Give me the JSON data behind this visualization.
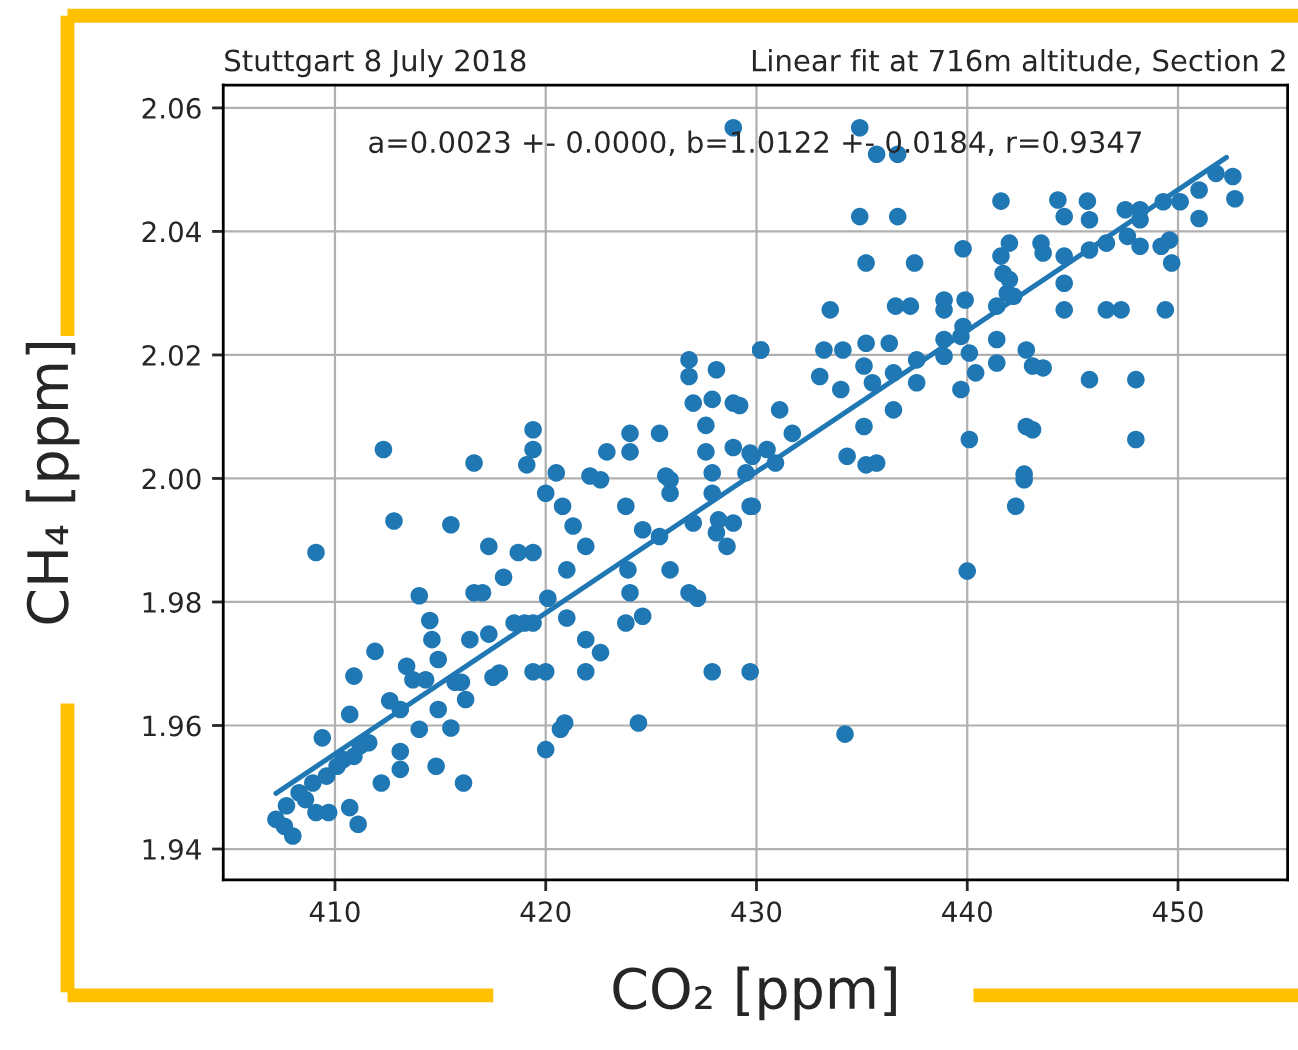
{
  "chart_data": {
    "type": "scatter",
    "title": "Stuttgart 8 July 2018",
    "subtitle": "Linear fit at 716m altitude, Section 2",
    "xlabel": "CO₂ [ppm]",
    "ylabel": "CH₄ [ppm]",
    "annotations": [
      "a=0.0023 +- 0.0000, b=1.0122 +- 0.0184, r=0.9347"
    ],
    "xlim": [
      404.7,
      455.2
    ],
    "ylim": [
      1.935,
      2.0637
    ],
    "xticks": [
      410,
      420,
      430,
      440,
      450
    ],
    "yticks": [
      {
        "value": 1.94,
        "label": "1.94"
      },
      {
        "value": 1.96,
        "label": "1.96"
      },
      {
        "value": 1.98,
        "label": "1.98"
      },
      {
        "value": 2.0,
        "label": "2.00"
      },
      {
        "value": 2.02,
        "label": "2.02"
      },
      {
        "value": 2.04,
        "label": "2.04"
      },
      {
        "value": 2.06,
        "label": "2.06"
      }
    ],
    "grid": true,
    "series": [
      {
        "marker": "circle",
        "color": "#1f77b4",
        "x": [
          409.1,
          412.8,
          415.5,
          417.3,
          418.7,
          419.4,
          418.0,
          414.0,
          416.6,
          417.0,
          414.5,
          411.9,
          410.9,
          409.4,
          410.7,
          412.2,
          411.1,
          410.7,
          414.8,
          416.1,
          415.5,
          420.0,
          420.7,
          420.9,
          424.4,
          427.9,
          429.7,
          419.4,
          420.0,
          421.9,
          422.6,
          421.9,
          423.8,
          424.6,
          424.0,
          423.9,
          425.9,
          426.8,
          427.2,
          421.0,
          421.0,
          420.1,
          419.0,
          418.5,
          419.4,
          417.8,
          417.5,
          416.4,
          417.3,
          414.6,
          414.9,
          413.4,
          413.7,
          414.3,
          415.7,
          416.2,
          416.0,
          414.9,
          413.1,
          412.6,
          413.1,
          413.1,
          414.0,
          411.6,
          407.6,
          408.0,
          407.2,
          407.7,
          408.3,
          408.95,
          409.6,
          410.1,
          410.4,
          410.9,
          409.7,
          409.1,
          408.6,
          411.2,
          434.9,
          435.7,
          436.7,
          434.9,
          436.7,
          441.6,
          444.3,
          444.6,
          445.7,
          445.8,
          447.5,
          448.2,
          448.2,
          449.3,
          450.1,
          451.0,
          451.0,
          451.8,
          452.6,
          452.7,
          435.2,
          437.5,
          439.8,
          441.6,
          442.0,
          441.7,
          442.0,
          441.9,
          442.2,
          441.4,
          443.5,
          443.6,
          444.6,
          444.6,
          444.6,
          445.8,
          446.6,
          447.6,
          448.2,
          449.2,
          449.6,
          449.7,
          446.6,
          447.3,
          449.4,
          439.9,
          438.9,
          438.9,
          437.3,
          436.6,
          433.5,
          438.9,
          439.7,
          439.8,
          440.1,
          438.9,
          437.6,
          436.3,
          435.2,
          434.1,
          433.2,
          433.0,
          434.0,
          435.1,
          435.5,
          436.5,
          437.6,
          439.7,
          440.4,
          441.4,
          441.4,
          442.8,
          443.1,
          443.6,
          445.8,
          448.0,
          430.2,
          431.1,
          431.7,
          436.5,
          435.1,
          440.1,
          442.8,
          443.1,
          448.0,
          434.3,
          435.2,
          435.7,
          442.7,
          440.0,
          442.3,
          442.7,
          434.2,
          429.7,
          428.2,
          428.9,
          412.3,
          416.6,
          419.1,
          419.4,
          419.4,
          420.5,
          422.1,
          422.9,
          424.0,
          424.0,
          425.4,
          425.7,
          426.8,
          426.8,
          428.1,
          427.0,
          427.9,
          428.9,
          427.6,
          427.6,
          428.9,
          427.9,
          430.2,
          429.8,
          420.0,
          420.8,
          421.3,
          421.9,
          422.6,
          423.8,
          424.6,
          425.4,
          425.9,
          425.9,
          427.0,
          427.9,
          428.1,
          428.6,
          428.9,
          429.8,
          429.2,
          429.7,
          430.5,
          430.9,
          429.5
        ],
        "values": [
          1.988,
          1.9931,
          1.9925,
          1.989,
          1.988,
          1.988,
          1.984,
          1.981,
          1.9815,
          1.9815,
          1.977,
          1.972,
          1.968,
          1.958,
          1.9618,
          1.9507,
          1.944,
          1.9467,
          1.9534,
          1.9507,
          1.9596,
          1.9561,
          1.9594,
          1.9604,
          1.9604,
          1.9687,
          1.9687,
          1.9687,
          1.9687,
          1.9687,
          1.9718,
          1.9739,
          1.9766,
          1.9777,
          1.9815,
          1.9852,
          1.9852,
          1.9815,
          1.9806,
          1.9774,
          1.9852,
          1.9806,
          1.9766,
          1.9766,
          1.9766,
          1.9685,
          1.9678,
          1.9739,
          1.9748,
          1.9739,
          1.9707,
          1.9696,
          1.9674,
          1.9674,
          1.967,
          1.9642,
          1.967,
          1.9626,
          1.9626,
          1.964,
          1.9558,
          1.9529,
          1.9594,
          1.9572,
          1.9437,
          1.9421,
          1.9448,
          1.947,
          1.9491,
          1.9507,
          1.9518,
          1.9534,
          1.9545,
          1.955,
          1.9459,
          1.9459,
          1.948,
          1.9567,
          2.0568,
          2.0525,
          2.0525,
          2.0424,
          2.0424,
          2.0449,
          2.0451,
          2.0424,
          2.0449,
          2.0419,
          2.0435,
          2.0435,
          2.0419,
          2.0448,
          2.0448,
          2.0467,
          2.0421,
          2.0494,
          2.0489,
          2.0453,
          2.0349,
          2.0349,
          2.0372,
          2.036,
          2.0381,
          2.0332,
          2.0322,
          2.03,
          2.0295,
          2.0279,
          2.0381,
          2.0365,
          2.036,
          2.0316,
          2.0273,
          2.037,
          2.0381,
          2.0392,
          2.0376,
          2.0376,
          2.0386,
          2.0349,
          2.0273,
          2.0273,
          2.0273,
          2.0289,
          2.0289,
          2.0273,
          2.0279,
          2.0279,
          2.0273,
          2.0225,
          2.023,
          2.0246,
          2.0203,
          2.0198,
          2.0192,
          2.0219,
          2.0219,
          2.0208,
          2.0208,
          2.0165,
          2.0144,
          2.0182,
          2.0155,
          2.0171,
          2.0155,
          2.0144,
          2.0171,
          2.0225,
          2.0187,
          2.0208,
          2.0182,
          2.0179,
          2.016,
          2.016,
          2.0208,
          2.0111,
          2.0073,
          2.0111,
          2.0084,
          2.0063,
          2.0084,
          2.0079,
          2.0063,
          2.0036,
          2.0022,
          2.0025,
          2.0007,
          1.985,
          1.9955,
          1.9998,
          1.9586,
          1.9955,
          1.9933,
          2.0568,
          2.0047,
          2.0025,
          2.0022,
          2.0047,
          2.0079,
          2.0009,
          2.0004,
          2.0043,
          2.0073,
          2.0043,
          2.0073,
          2.0004,
          2.0192,
          2.0165,
          2.0176,
          2.0122,
          2.0128,
          2.0122,
          2.0086,
          2.0043,
          2.005,
          2.0009,
          2.0208,
          2.0036,
          1.9976,
          1.9955,
          1.9923,
          1.989,
          1.9998,
          1.9955,
          1.9917,
          1.9906,
          1.9976,
          1.9998,
          1.9928,
          1.9976,
          1.9912,
          1.989,
          1.9928,
          1.9955,
          2.0118,
          2.0041,
          2.0047,
          2.0025,
          2.0009
        ]
      },
      {
        "type": "line",
        "color": "#1f77b4",
        "x": [
          407.2,
          452.3
        ],
        "values": [
          1.949,
          2.052
        ]
      }
    ]
  }
}
